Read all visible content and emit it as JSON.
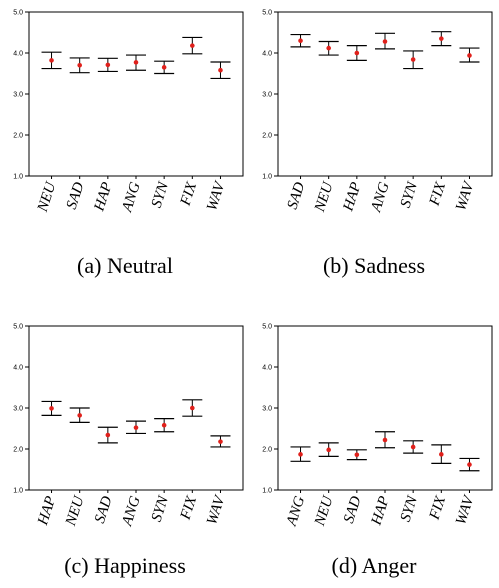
{
  "colors": {
    "point": "#e0201b",
    "line": "#000000",
    "frame": "#000000"
  },
  "chart_data": [
    {
      "type": "scatter",
      "caption": "(a) Neutral",
      "categories": [
        "NEU",
        "SAD",
        "HAP",
        "ANG",
        "SYN",
        "FIX",
        "WAV"
      ],
      "values": [
        3.82,
        3.7,
        3.71,
        3.77,
        3.65,
        4.18,
        3.58
      ],
      "error_low": [
        3.62,
        3.52,
        3.55,
        3.58,
        3.5,
        3.98,
        3.38
      ],
      "error_high": [
        4.02,
        3.88,
        3.87,
        3.95,
        3.8,
        4.38,
        3.78
      ],
      "yticks": [
        "1.0",
        "2.0",
        "3.0",
        "4.0",
        "5.0"
      ],
      "ylim": [
        1.0,
        5.0
      ],
      "grid": false
    },
    {
      "type": "scatter",
      "caption": "(b) Sadness",
      "categories": [
        "SAD",
        "NEU",
        "HAP",
        "ANG",
        "SYN",
        "FIX",
        "WAV"
      ],
      "values": [
        4.3,
        4.12,
        4.0,
        4.28,
        3.84,
        4.35,
        3.94
      ],
      "error_low": [
        4.15,
        3.95,
        3.82,
        4.1,
        3.62,
        4.18,
        3.78
      ],
      "error_high": [
        4.45,
        4.28,
        4.18,
        4.48,
        4.05,
        4.52,
        4.12
      ],
      "yticks": [
        "1.0",
        "2.0",
        "3.0",
        "4.0",
        "5.0"
      ],
      "ylim": [
        1.0,
        5.0
      ],
      "grid": false
    },
    {
      "type": "scatter",
      "caption": "(c) Happiness",
      "categories": [
        "HAP",
        "NEU",
        "SAD",
        "ANG",
        "SYN",
        "FIX",
        "WAV"
      ],
      "values": [
        2.99,
        2.82,
        2.34,
        2.52,
        2.58,
        3.0,
        2.18
      ],
      "error_low": [
        2.82,
        2.65,
        2.15,
        2.38,
        2.42,
        2.8,
        2.05
      ],
      "error_high": [
        3.16,
        3.0,
        2.53,
        2.68,
        2.74,
        3.2,
        2.32
      ],
      "yticks": [
        "1.0",
        "2.0",
        "3.0",
        "4.0",
        "5.0"
      ],
      "ylim": [
        1.0,
        5.0
      ],
      "grid": false
    },
    {
      "type": "scatter",
      "caption": "(d) Anger",
      "categories": [
        "ANG",
        "NEU",
        "SAD",
        "HAP",
        "SYN",
        "FIX",
        "WAV"
      ],
      "values": [
        1.87,
        1.98,
        1.86,
        2.22,
        2.05,
        1.87,
        1.62
      ],
      "error_low": [
        1.7,
        1.82,
        1.74,
        2.03,
        1.9,
        1.65,
        1.47
      ],
      "error_high": [
        2.05,
        2.15,
        1.98,
        2.42,
        2.2,
        2.1,
        1.77
      ],
      "yticks": [
        "1.0",
        "2.0",
        "3.0",
        "4.0",
        "5.0"
      ],
      "ylim": [
        1.0,
        5.0
      ],
      "grid": false
    }
  ]
}
